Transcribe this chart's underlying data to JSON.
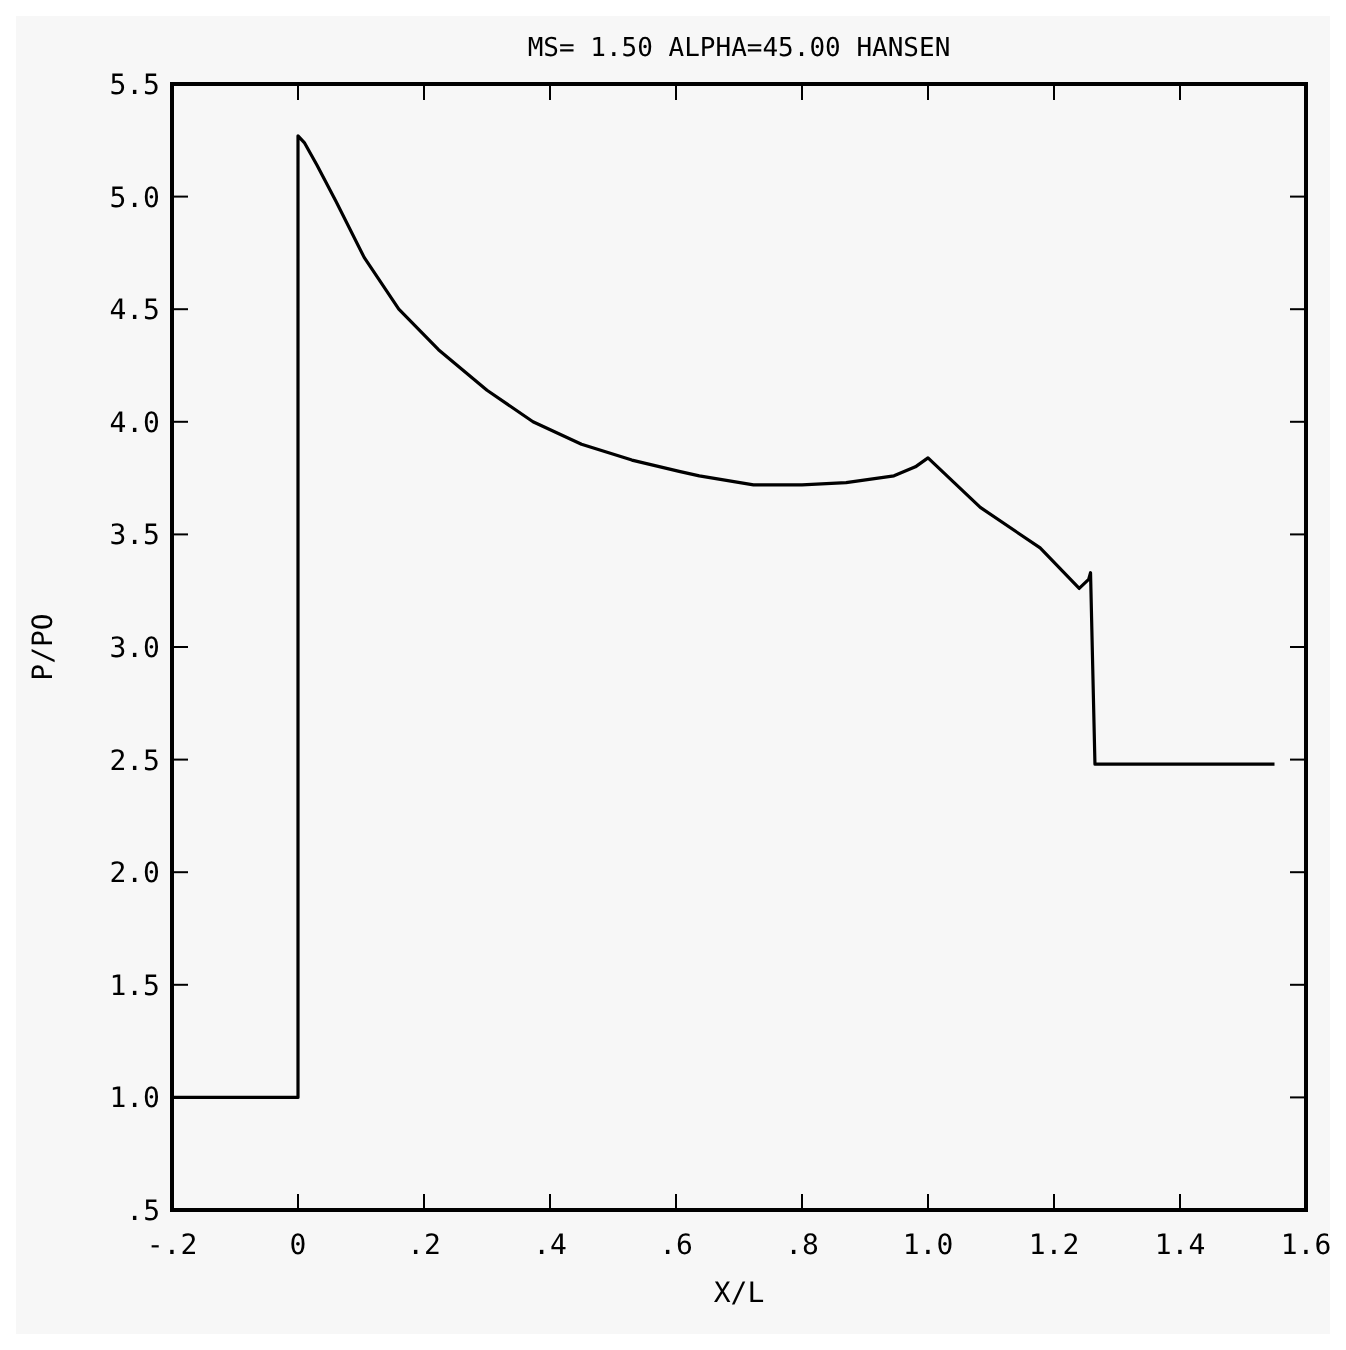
{
  "chart_data": {
    "type": "line",
    "title": "MS= 1.50  ALPHA=45.00  HANSEN",
    "xlabel": "X/L",
    "ylabel": "P/PO",
    "x": [
      -0.2,
      0,
      0,
      0.01,
      0.03,
      0.06,
      0.105,
      0.16,
      0.223,
      0.3,
      0.373,
      0.45,
      0.53,
      0.605,
      0.637,
      0.723,
      0.8,
      0.87,
      0.946,
      0.98,
      1.0,
      1.083,
      1.178,
      1.24,
      1.255,
      1.258,
      1.265,
      1.55
    ],
    "series": [
      {
        "color": "#000000",
        "values": [
          1.0,
          1.0,
          5.27,
          5.24,
          5.14,
          4.98,
          4.73,
          4.5,
          4.32,
          4.14,
          4.0,
          3.9,
          3.83,
          3.78,
          3.76,
          3.72,
          3.72,
          3.73,
          3.76,
          3.8,
          3.84,
          3.62,
          3.44,
          3.26,
          3.3,
          3.33,
          2.48,
          2.48
        ]
      }
    ],
    "xlim": [
      -0.2,
      1.6
    ],
    "ylim": [
      0.5,
      5.5
    ],
    "xticks": [
      {
        "value": -0.2,
        "label": "-.2"
      },
      0,
      {
        "value": 0.2,
        "label": ".2"
      },
      {
        "value": 0.4,
        "label": ".4"
      },
      {
        "value": 0.6,
        "label": ".6"
      },
      {
        "value": 0.8,
        "label": ".8"
      },
      {
        "value": 1.0,
        "label": "1.0"
      },
      {
        "value": 1.2,
        "label": "1.2"
      },
      {
        "value": 1.4,
        "label": "1.4"
      },
      {
        "value": 1.6,
        "label": "1.6"
      }
    ],
    "yticks": [
      {
        "value": 0.5,
        "label": ".5"
      },
      {
        "value": 1.0,
        "label": "1.0"
      },
      1.5,
      {
        "value": 2.0,
        "label": "2.0"
      },
      2.5,
      {
        "value": 3.0,
        "label": "3.0"
      },
      3.5,
      {
        "value": 4.0,
        "label": "4.0"
      },
      4.5,
      {
        "value": 5.0,
        "label": "5.0"
      },
      5.5
    ],
    "grid": false,
    "marker": "none",
    "line_style": "solid"
  }
}
